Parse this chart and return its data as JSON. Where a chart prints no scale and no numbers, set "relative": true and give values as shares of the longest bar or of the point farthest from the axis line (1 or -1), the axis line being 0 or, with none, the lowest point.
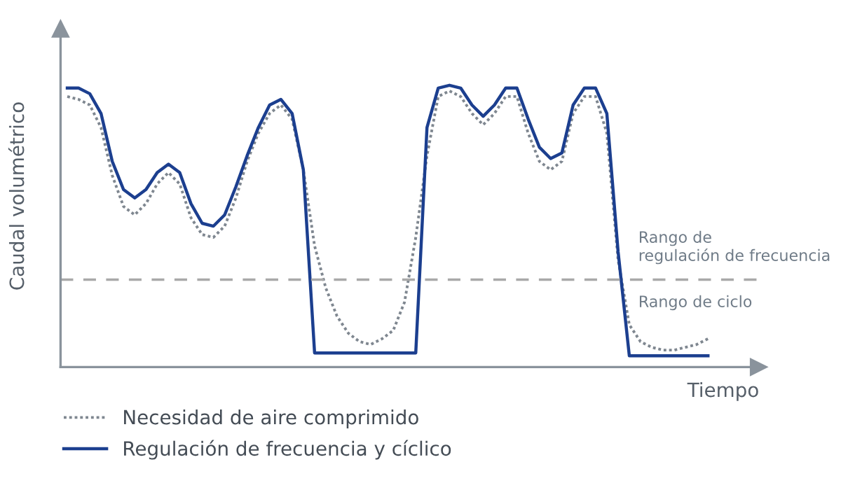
{
  "chart_data": {
    "type": "line",
    "relative": true,
    "xlabel": "Tiempo",
    "ylabel": "Caudal volumétrico",
    "categories": [
      null,
      null,
      null,
      null,
      null,
      null,
      null,
      null,
      null,
      null,
      null,
      null,
      null,
      null,
      null,
      null,
      null,
      null,
      null,
      null,
      null,
      null,
      null,
      null,
      null,
      null,
      null,
      null,
      null,
      null,
      null,
      null,
      null,
      null,
      null,
      null,
      null,
      null,
      null,
      null,
      null,
      null,
      null,
      null,
      null,
      null,
      null,
      null,
      null,
      null,
      null,
      null,
      null,
      null,
      null,
      null,
      null,
      null
    ],
    "series": [
      {
        "name": "Necesidad de aire comprimido",
        "color": "#7f8790",
        "line_style": "dotted",
        "values": [
          0.96,
          0.95,
          0.93,
          0.85,
          0.68,
          0.57,
          0.54,
          0.58,
          0.65,
          0.69,
          0.65,
          0.53,
          0.47,
          0.46,
          0.5,
          0.6,
          0.73,
          0.83,
          0.9,
          0.93,
          0.88,
          0.7,
          0.43,
          0.28,
          0.18,
          0.12,
          0.09,
          0.08,
          0.1,
          0.13,
          0.23,
          0.46,
          0.75,
          0.96,
          0.98,
          0.96,
          0.9,
          0.86,
          0.9,
          0.96,
          0.96,
          0.83,
          0.73,
          0.7,
          0.73,
          0.9,
          0.96,
          0.96,
          0.83,
          0.38,
          0.15,
          0.09,
          0.07,
          0.06,
          0.06,
          0.07,
          0.08,
          0.1
        ]
      },
      {
        "name": "Regulación de frecuencia y cíclico",
        "color": "#1c3f8f",
        "line_style": "solid",
        "values": [
          0.99,
          0.99,
          0.97,
          0.9,
          0.73,
          0.63,
          0.6,
          0.63,
          0.69,
          0.72,
          0.69,
          0.58,
          0.51,
          0.5,
          0.54,
          0.64,
          0.75,
          0.85,
          0.93,
          0.95,
          0.9,
          0.7,
          0.05,
          0.05,
          0.05,
          0.05,
          0.05,
          0.05,
          0.05,
          0.05,
          0.05,
          0.05,
          0.85,
          0.99,
          1.0,
          0.99,
          0.93,
          0.89,
          0.93,
          0.99,
          0.99,
          0.88,
          0.78,
          0.74,
          0.76,
          0.93,
          0.99,
          0.99,
          0.9,
          0.41,
          0.04,
          0.04,
          0.04,
          0.04,
          0.04,
          0.04,
          0.04,
          0.04
        ]
      }
    ],
    "ref_lines": [
      {
        "axis": "y",
        "value": 0.31,
        "label": "Rango de\nregulación de frecuencia",
        "color": "#a9a9a9",
        "line_style": "dashed"
      }
    ],
    "annotations": [
      "Rango de ciclo"
    ],
    "legend": "bottom",
    "marker": "none"
  }
}
